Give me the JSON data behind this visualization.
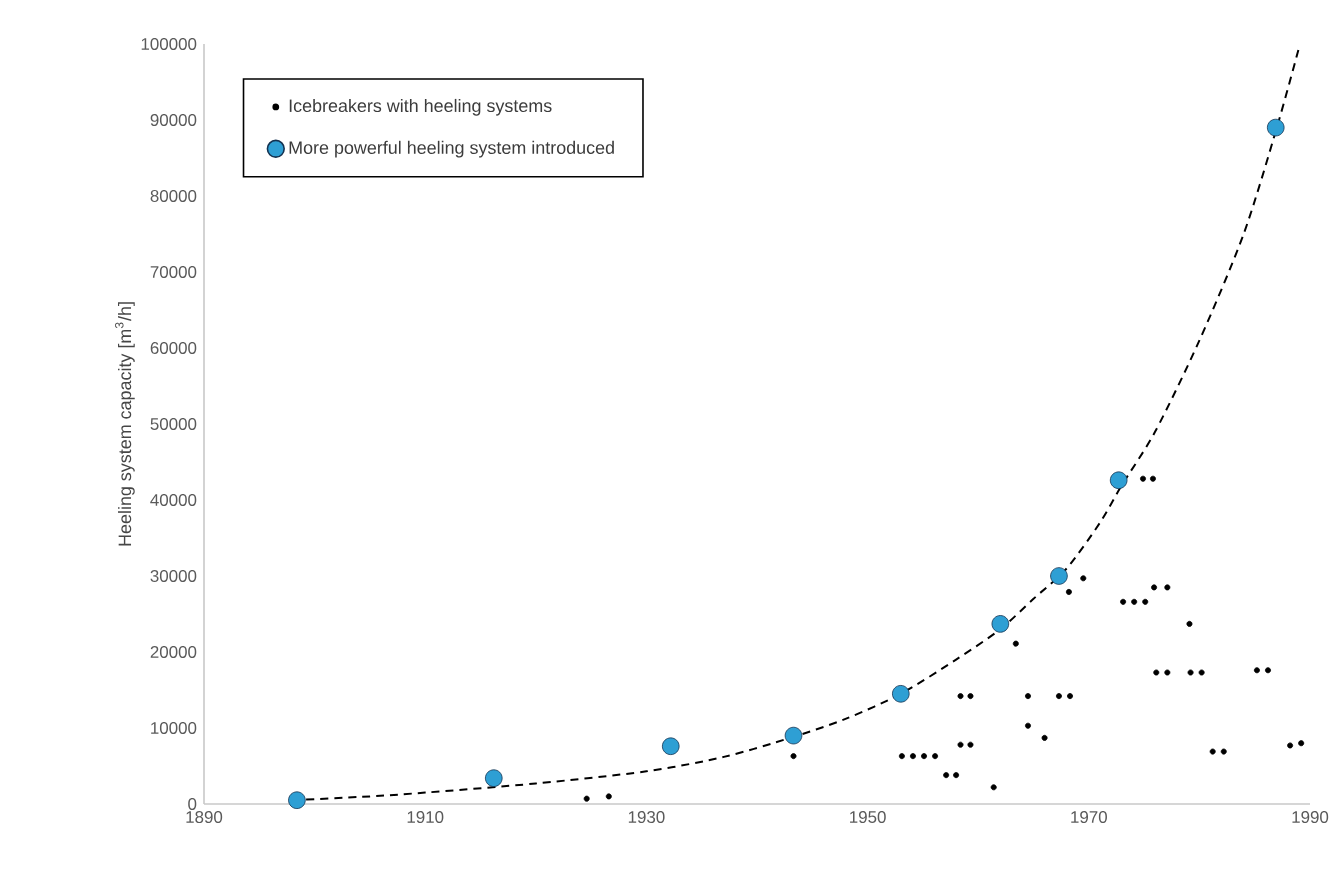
{
  "chart_data": {
    "type": "scatter",
    "ylabel": "Heeling system capacity [m$^{3}$/h]",
    "xlim": [
      1890,
      1990
    ],
    "xticks": [
      1890,
      1910,
      1930,
      1950,
      1970,
      1990
    ],
    "ylim": [
      0,
      100000
    ],
    "yticks": [
      0,
      10000,
      20000,
      30000,
      40000,
      50000,
      60000,
      70000,
      80000,
      90000,
      100000
    ],
    "grid": false,
    "legend": "top left",
    "series": [
      {
        "name": "Icebreakers with heeling systems",
        "color": "#000000",
        "marker": "circle",
        "x": [
          1924.6,
          1926.6,
          1943.3,
          1953.1,
          1954.1,
          1955.1,
          1956.1,
          1957.1,
          1958.0,
          1958.4,
          1959.3,
          1958.4,
          1959.3,
          1961.4,
          1963.4,
          1964.5,
          1964.5,
          1966.0,
          1967.3,
          1968.3,
          1968.2,
          1969.5,
          1973.1,
          1974.1,
          1975.1,
          1975.9,
          1977.1,
          1979.1,
          1976.1,
          1977.1,
          1979.2,
          1980.2,
          1985.2,
          1986.2,
          1981.2,
          1982.2,
          1988.2,
          1989.2,
          1974.9,
          1975.8
        ],
        "values": [
          700,
          1000,
          6300,
          6300,
          6300,
          6300,
          6300,
          3800,
          3800,
          14200,
          14200,
          7800,
          7800,
          2200,
          21100,
          14200,
          10300,
          8700,
          14200,
          14200,
          27900,
          29700,
          26600,
          26600,
          26600,
          28500,
          28500,
          23700,
          17300,
          17300,
          17300,
          17300,
          17600,
          17600,
          6900,
          6900,
          7700,
          8000,
          42800,
          42800
        ]
      },
      {
        "name": "More powerful heeling system introduced",
        "color": "#2e9fd4",
        "marker": "circle",
        "x": [
          1898.4,
          1916.2,
          1932.2,
          1943.3,
          1953.0,
          1962.0,
          1967.3,
          1972.7,
          1986.9
        ],
        "values": [
          500,
          3400,
          7600,
          9000,
          14500,
          23700,
          30000,
          42600,
          89000
        ]
      },
      {
        "type": "line",
        "color": "#000000",
        "line_style": "dashed",
        "marker": "none",
        "x": [
          1898,
          1905,
          1910,
          1920,
          1930,
          1937,
          1943,
          1948,
          1953,
          1958,
          1962,
          1965,
          1968,
          1971,
          1973,
          1976,
          1980,
          1984,
          1987,
          1989
        ],
        "values": [
          500,
          1000,
          1500,
          2700,
          4300,
          6200,
          8700,
          11200,
          14500,
          19000,
          23000,
          27000,
          31000,
          37000,
          42000,
          49000,
          61000,
          75000,
          89000,
          99500
        ]
      }
    ]
  }
}
